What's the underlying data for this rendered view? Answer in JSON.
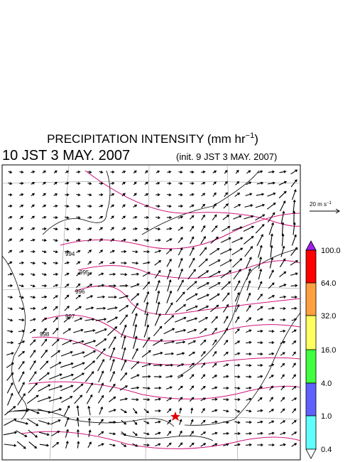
{
  "header": {
    "title_main": "PRECIPITATION INTENSITY (mm hr",
    "title_exp": "−1",
    "title_close": ")",
    "valid_time": "10 JST 3 MAY. 2007",
    "init_time": "(init. 9 JST 3 MAY. 2007)"
  },
  "wind_legend": {
    "unit_main": "20 m s",
    "unit_exp": "−1"
  },
  "colorbar": {
    "labels": [
      "100.0",
      "64.0",
      "32.0",
      "16.0",
      "4.0",
      "1.0",
      "0.4"
    ]
  },
  "isobars": {
    "labels": [
      "994",
      "995",
      "996",
      "997",
      "998"
    ]
  }
}
